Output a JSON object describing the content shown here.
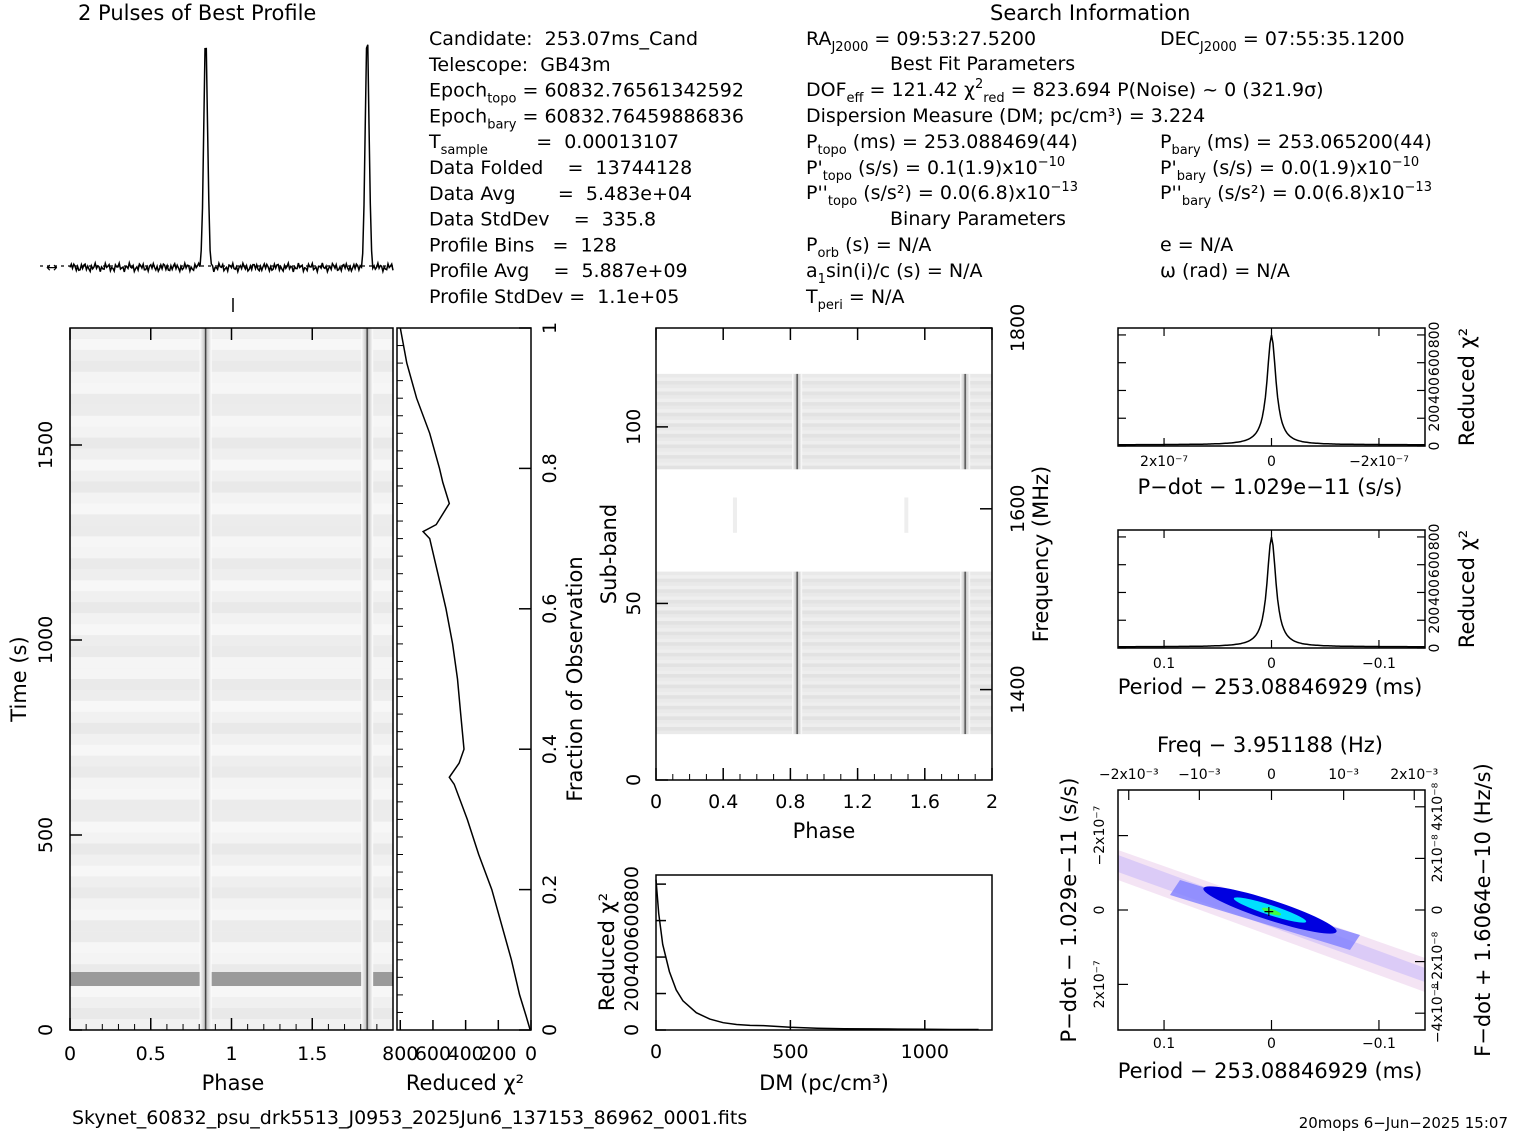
{
  "header": {
    "profile_title": "2 Pulses of Best Profile",
    "search_title": "Search Information",
    "best_fit_title": "Best Fit Parameters",
    "binary_title": "Binary Parameters"
  },
  "info_left": [
    {
      "main": "Candidate:  253.07ms_Cand",
      "sub": "",
      "rest": ""
    },
    {
      "main": "Telescope:  GB43m",
      "sub": "",
      "rest": ""
    },
    {
      "main": "Epoch",
      "sub": "topo",
      "rest": " = 60832.76561342592"
    },
    {
      "main": "Epoch",
      "sub": "bary",
      "rest": " = 60832.76459886836"
    },
    {
      "main": "T",
      "sub": "sample",
      "rest": "        =  0.00013107"
    },
    {
      "main": "Data Folded    =  13744128",
      "sub": "",
      "rest": ""
    },
    {
      "main": "Data Avg       =  5.483e+04",
      "sub": "",
      "rest": ""
    },
    {
      "main": "Data StdDev    =  335.8",
      "sub": "",
      "rest": ""
    },
    {
      "main": "Profile Bins   =  128",
      "sub": "",
      "rest": ""
    },
    {
      "main": "Profile Avg    =  5.887e+09",
      "sub": "",
      "rest": ""
    },
    {
      "main": "Profile StdDev =  1.1e+05",
      "sub": "",
      "rest": ""
    }
  ],
  "info_right": {
    "ra": "RA",
    "ra_sub": "J2000",
    "ra_val": " = 09:53:27.5200",
    "dec": "DEC",
    "dec_sub": "J2000",
    "dec_val": " = 07:55:35.1200",
    "dof": "DOF",
    "dof_sub": "eff",
    "dof_val": " = 121.42  χ",
    "chi_sup": "2",
    "chi_sub": "red",
    "chi_val": " = 823.694  P(Noise) ~ 0   (321.9σ)",
    "dm_line": "Dispersion Measure (DM; pc/cm³) = 3.224",
    "ptopo": "P",
    "ptopo_sub": "topo",
    "ptopo_val": " (ms) =  253.088469(44)",
    "pbary": "P",
    "pbary_sub": "bary",
    "pbary_val": " (ms) =  253.065200(44)",
    "pdtopo": "P'",
    "pdtopo_sub": "topo",
    "pdtopo_val": " (s/s) =  0.1(1.9)x10",
    "pdtopo_exp": "−10",
    "pdbary": "P'",
    "pdbary_sub": "bary",
    "pdbary_val": " (s/s) = 0.0(1.9)x10",
    "pdbary_exp": "−10",
    "pddtopo": "P''",
    "pddtopo_sub": "topo",
    "pddtopo_val": " (s/s²) = 0.0(6.8)x10",
    "pddtopo_exp": "−13",
    "pddbary": "P''",
    "pddbary_sub": "bary",
    "pddbary_val": " (s/s²) = 0.0(6.8)x10",
    "pddbary_exp": "−13",
    "porb": "P",
    "porb_sub": "orb",
    "porb_val": " (s) = N/A",
    "e_line": "e = N/A",
    "a1": "a",
    "a1_sub": "1",
    "a1_val": "sin(i)/c (s) = N/A",
    "omega_line": "ω (rad) = N/A",
    "tperi": "T",
    "tperi_sub": "peri",
    "tperi_val": " = N/A"
  },
  "footer": {
    "filename": "Skynet_60832_psu_drk5513_J0953_2025Jun6_137153_86962_0001.fits",
    "stamp": "20mops   6−Jun−2025 15:07"
  },
  "colors": {
    "greyscale_min": "#ffffff",
    "greyscale_max": "#000000",
    "ppdot_low": "#ffffff",
    "ppdot_mid": "#0000ff",
    "ppdot_high": "#00ffff",
    "ppdot_peak": "#00ff00"
  },
  "chart_data": [
    {
      "id": "profile",
      "type": "line",
      "title": "2 Pulses of Best Profile",
      "x": [
        0,
        2
      ],
      "pulse_phases": [
        0.84,
        1.84
      ],
      "description_values": {
        "baseline_ref": "dashed"
      }
    },
    {
      "id": "time_phase",
      "type": "heatmap",
      "xlabel": "Phase",
      "ylabel": "Time (s)",
      "xlim": [
        0,
        2
      ],
      "ylim": [
        0,
        1800
      ],
      "x_ticks": [
        "0",
        "0.5",
        "1",
        "1.5"
      ],
      "y_ticks": [
        "0",
        "500",
        "1000",
        "1500"
      ],
      "pulse_phases": [
        0.84,
        1.84
      ]
    },
    {
      "id": "time_chi2",
      "type": "line",
      "xlabel": "Reduced χ²",
      "ylabel": "Fraction of Observation",
      "x_ticks": [
        "800",
        "600",
        "400",
        "200",
        "0"
      ],
      "y_ticks": [
        "0",
        "0.2",
        "0.4",
        "0.6",
        "0.8",
        "1"
      ],
      "frac": [
        0,
        0.02,
        0.05,
        0.1,
        0.15,
        0.2,
        0.25,
        0.3,
        0.35,
        0.36,
        0.38,
        0.4,
        0.45,
        0.5,
        0.55,
        0.6,
        0.65,
        0.7,
        0.71,
        0.72,
        0.75,
        0.78,
        0.8,
        0.85,
        0.9,
        0.95,
        1.0
      ],
      "chi2": [
        5,
        30,
        70,
        120,
        180,
        240,
        320,
        390,
        470,
        500,
        440,
        410,
        430,
        450,
        480,
        520,
        570,
        620,
        660,
        580,
        500,
        540,
        560,
        620,
        700,
        760,
        800
      ],
      "xlim": [
        800,
        0
      ]
    },
    {
      "id": "subband_phase",
      "type": "heatmap",
      "xlabel": "Phase",
      "ylabel": "Sub-band",
      "y2label": "Frequency (MHz)",
      "xlim": [
        0,
        2
      ],
      "ylim": [
        0,
        128
      ],
      "x_ticks": [
        "0",
        "0.4",
        "0.8",
        "1.2",
        "1.6",
        "2"
      ],
      "y_ticks": [
        "0",
        "50",
        "100"
      ],
      "y2_ticks": [
        "1400",
        "1600",
        "1800"
      ],
      "bands": [
        [
          13,
          59
        ],
        [
          88,
          115
        ]
      ],
      "pulse_phases": [
        0.84,
        1.84
      ]
    },
    {
      "id": "dm_chi2",
      "type": "line",
      "xlabel": "DM (pc/cm³)",
      "ylabel": "Reduced χ²",
      "xlim": [
        0,
        1250
      ],
      "ylim": [
        0,
        850
      ],
      "x_ticks": [
        "0",
        "500",
        "1000"
      ],
      "y_ticks": [
        "0",
        "200",
        "400",
        "600",
        "800"
      ],
      "dm": [
        0,
        10,
        25,
        50,
        75,
        100,
        150,
        200,
        250,
        300,
        350,
        400,
        500,
        600,
        700,
        800,
        900,
        1000,
        1100,
        1200
      ],
      "chi2": [
        824,
        640,
        470,
        320,
        220,
        160,
        95,
        60,
        40,
        30,
        25,
        24,
        15,
        10,
        7,
        6,
        5,
        4,
        3,
        3
      ]
    },
    {
      "id": "pdot_chi2",
      "type": "line",
      "xlabel": "P−dot − 1.029e−11 (s/s)",
      "ylabel": "Reduced χ²",
      "x_ticks": [
        "2x10⁻⁷",
        "0",
        "−2x10⁻⁷"
      ],
      "y_ticks": [
        "0",
        "200",
        "400",
        "600",
        "800"
      ],
      "peak": 824,
      "width": 0.12
    },
    {
      "id": "period_chi2",
      "type": "line",
      "xlabel": "Period − 253.08846929 (ms)",
      "ylabel": "Reduced χ²",
      "x_ticks": [
        "0.1",
        "0",
        "−0.1"
      ],
      "y_ticks": [
        "0",
        "200",
        "400",
        "600",
        "800"
      ],
      "peak": 824,
      "width": 0.12
    },
    {
      "id": "p_pdot",
      "type": "heatmap",
      "title": "Freq − 3.951188 (Hz)",
      "xlabel": "Period − 253.08846929 (ms)",
      "ylabel": "P−dot − 1.029e−11 (s/s)",
      "y2label": "F−dot + 1.6064e−10 (Hz/s)",
      "x_ticks": [
        "0.1",
        "0",
        "−0.1"
      ],
      "y_ticks": [
        "−2x10⁻⁷",
        "0",
        "2x10⁻⁷"
      ],
      "x2_ticks": [
        "−2x10⁻³",
        "−10⁻³",
        "0",
        "10⁻³",
        "2x10⁻³"
      ],
      "y2_ticks": [
        "4x10⁻⁸",
        "2x10⁻⁸",
        "0",
        "−2x10⁻⁸",
        "−4x10⁻⁸"
      ]
    }
  ]
}
